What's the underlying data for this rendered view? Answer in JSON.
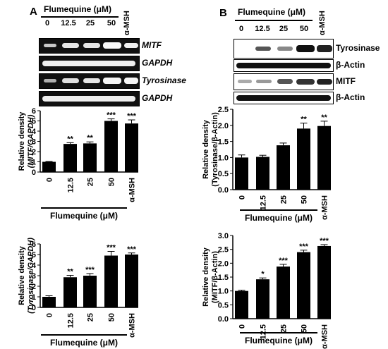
{
  "panel_a": {
    "letter": "A",
    "header": "Flumequine (μM)",
    "lanes": [
      "0",
      "12.5",
      "25",
      "50"
    ],
    "alpha_msh": "α-MSH",
    "gels": [
      "MITF",
      "GAPDH",
      "Tyrosinase",
      "GAPDH"
    ]
  },
  "panel_b": {
    "letter": "B",
    "header": "Flumequine (μM)",
    "lanes": [
      "0",
      "12.5",
      "25",
      "50"
    ],
    "alpha_msh": "α-MSH",
    "blots": [
      "Tyrosinase",
      "β-Actin",
      "MITF",
      "β-Actin"
    ]
  },
  "chart_data": [
    {
      "type": "bar",
      "categories": [
        "0",
        "12.5",
        "25",
        "50",
        "α-MSH"
      ],
      "values": [
        1.0,
        2.75,
        2.8,
        5.0,
        4.75
      ],
      "errors": [
        0.03,
        0.12,
        0.15,
        0.2,
        0.35
      ],
      "significance": [
        "",
        "**",
        "**",
        "***",
        "***"
      ],
      "ylabel_1": "Relative density",
      "ylabel_2": "(MITF/GAPDH)",
      "xlabel": "Flumequine (μM)",
      "ylim": [
        0,
        6
      ],
      "yticks": [
        "0",
        "1",
        "2",
        "3",
        "4",
        "5",
        "6"
      ]
    },
    {
      "type": "bar",
      "categories": [
        "0",
        "12.5",
        "25",
        "50",
        "α-MSH"
      ],
      "values": [
        1.0,
        2.85,
        3.0,
        4.9,
        5.0
      ],
      "errors": [
        0.1,
        0.18,
        0.2,
        0.4,
        0.15
      ],
      "significance": [
        "",
        "**",
        "***",
        "***",
        "***"
      ],
      "ylabel_1": "Relative density",
      "ylabel_2": "(Tyrosinase/GAPDH)",
      "xlabel": "Flumequine (μM)",
      "ylim": [
        0,
        6
      ],
      "yticks": [
        "0",
        "1",
        "2",
        "3",
        "4",
        "5",
        "6"
      ]
    },
    {
      "type": "bar",
      "categories": [
        "0",
        "12.5",
        "25",
        "50",
        "α-MSH"
      ],
      "values": [
        1.0,
        1.02,
        1.38,
        1.9,
        1.98
      ],
      "errors": [
        0.08,
        0.05,
        0.07,
        0.17,
        0.15
      ],
      "significance": [
        "",
        "",
        "",
        "**",
        "**"
      ],
      "ylabel_1": "Relative density",
      "ylabel_2": "(Tyrosinase/β-Actin)",
      "xlabel": "Flumequine (μM)",
      "ylim": [
        0,
        2.5
      ],
      "yticks": [
        "0.0",
        "0.5",
        "1.0",
        "1.5",
        "2.0",
        "2.5"
      ]
    },
    {
      "type": "bar",
      "categories": [
        "0",
        "12.5",
        "25",
        "50",
        "α-MSH"
      ],
      "values": [
        1.0,
        1.42,
        1.88,
        2.4,
        2.62
      ],
      "errors": [
        0.03,
        0.05,
        0.08,
        0.07,
        0.05
      ],
      "significance": [
        "",
        "*",
        "***",
        "***",
        "***"
      ],
      "ylabel_1": "Relative density",
      "ylabel_2": "(MITF/β-Actin)",
      "xlabel": "Flumequine (μM)",
      "ylim": [
        0,
        3.0
      ],
      "yticks": [
        "0.0",
        "0.5",
        "1.0",
        "1.5",
        "2.0",
        "2.5",
        "3.0"
      ]
    }
  ]
}
